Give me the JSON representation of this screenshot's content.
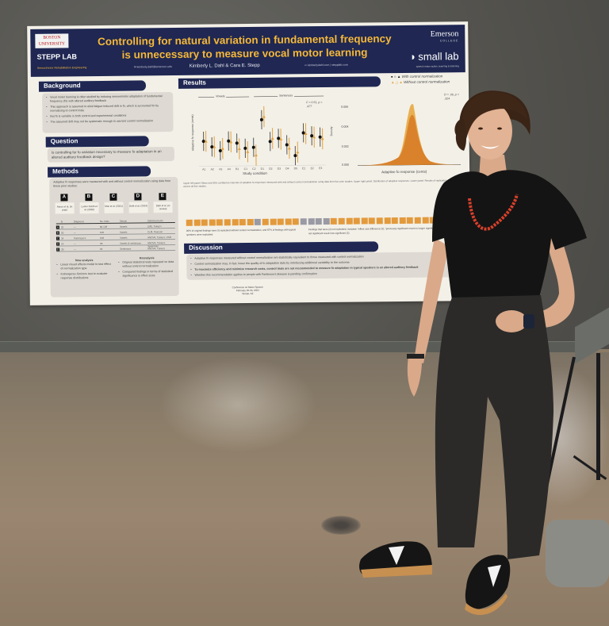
{
  "scene": {
    "description": "Researcher standing next to a conference poster mounted on a gray fabric board",
    "colors": {
      "board": "#55544f",
      "floor": "#8e7f6a",
      "poster_navy": "#1f2752",
      "poster_gold": "#f5b83a",
      "poster_bg": "#f3f0e8",
      "orange": "#e39a3c",
      "gray_square": "#9a9aa4"
    }
  },
  "poster": {
    "title_line1": "Controlling for natural variation in fundamental frequency",
    "title_line2": "is unnecessary to measure vocal motor learning",
    "authors": "Kimberly L. Dahl & Cara E. Stepp",
    "email": "kimberly.dahl@emerson.edu",
    "website": "kimberlydahl.com | stepplab.com",
    "logos": {
      "bu": "BOSTON UNIVERSITY",
      "stepp": "STEPP LAB",
      "stepp_sub": "Sensorimotor Rehabilitation Engineering",
      "emerson": "Emerson",
      "emerson_sub": "COLLEGE",
      "small_lab": "small lab",
      "small_lab_sub": "speech motor action, learning & listening"
    },
    "background": {
      "heading": "Background",
      "bullets": [
        "Vocal motor learning is often studied by inducing sensorimotor adaptation of fundamental frequency (fo) with altered auditory feedback",
        "This approach is assumed to elicit fatigue-induced drift in fo, which is accounted for by normalizing to control trials",
        "But fo is variable in both control and experimental conditions",
        "The assumed drift may not be systematic enough to warrant control normalization"
      ]
    },
    "question": {
      "heading": "Question",
      "text": "Is controlling for fo variation necessary to measure fo adaptation in an altered auditory feedback design?"
    },
    "methods": {
      "heading": "Methods",
      "intro": "Adaptive fo responses were measured with and without control normalization using data from these prior studies:",
      "studies": [
        {
          "letter": "A",
          "cite": "Aaron et al. (in prep)"
        },
        {
          "letter": "B",
          "cite": "Lester-Smith et al. (2020)"
        },
        {
          "letter": "C",
          "cite": "Moe et al. (2021)"
        },
        {
          "letter": "D",
          "cite": "Dahl et al. (2024)"
        },
        {
          "letter": "E",
          "cite": "Dahl et al. (in review)"
        }
      ],
      "table_headers": [
        "N",
        "Diagnosis",
        "No. trials",
        "Stimuli",
        "Statistical tests"
      ],
      "table_rows": [
        [
          "A",
          "32",
          "—",
          "60-128",
          "Vowels",
          "LME, Tukey's"
        ],
        [
          "B",
          "20",
          "—",
          "108",
          "Vowels",
          "CLM, Pearson"
        ],
        [
          "C",
          "34",
          "Parkinson's",
          "108",
          "Vowels",
          "ANOVA, Tukey's, HSD"
        ],
        [
          "D",
          "24",
          "—",
          "96",
          "Vowels & sentences",
          "ANOVA, Tukey's, Spearman"
        ],
        [
          "E",
          "30",
          "—",
          "84",
          "Sentences",
          "ANOVA, Tukey's"
        ]
      ],
      "new_analysis": {
        "heading": "New analysis",
        "bullets": [
          "Linear mixed effects model to test effect of normalization type",
          "Kolmogorov-Smirnov test to evaluate response distributions"
        ]
      },
      "reanalysis": {
        "heading": "Reanalysis",
        "bullets": [
          "Original statistical tests repeated on data without control normalization",
          "Compared findings in terms of statistical significance & effect sizes"
        ]
      }
    },
    "results": {
      "heading": "Results",
      "legend": [
        {
          "symbols": "● ○ ▲",
          "label": "With control normalization"
        },
        {
          "symbols": "▲ △ ▲",
          "label": "Without control normalization"
        }
      ],
      "left_plot": {
        "group_labels": [
          "Vowels",
          "Sentences"
        ],
        "stat": "F = 0.51, p = .477",
        "ylabel": "Adaptive fo response (cents)",
        "xlabel": "Study condition",
        "yticks": [
          "150",
          "100",
          "50",
          "0",
          "-50"
        ],
        "conditions": [
          "A1",
          "A2",
          "A3",
          "A4",
          "B1",
          "C1",
          "C2",
          "D1",
          "D2",
          "D3",
          "D4",
          "D5",
          "E1",
          "E2",
          "E3"
        ],
        "with_norm": [
          30,
          17,
          8,
          30,
          25,
          13,
          15,
          78,
          28,
          35,
          20,
          -5,
          47,
          40,
          37
        ],
        "without_norm": [
          30,
          17,
          13,
          28,
          12,
          5,
          -3,
          85,
          35,
          33,
          12,
          3,
          45,
          37,
          33
        ]
      },
      "right_plot": {
        "stat": "D = .06, p = .324",
        "ylabel": "Density",
        "xlabel": "Adaptive fo response (cents)",
        "yticks": [
          "0.006",
          "0.004",
          "0.002",
          "0.000"
        ],
        "xticks": [
          "-250",
          "0",
          "250",
          "500"
        ]
      },
      "caption": "Upper left panel: Mean and 95% confidence intervals of adaptive fo responses measured with and without control normalization using data from five prior studies. Upper right panel: Distribution of adaptive responses. Lower panel: Results of replication analyses across all five studies.",
      "replication": {
        "studies": [
          "Study A",
          "Study B",
          "Study C",
          "Study D",
          "Study E"
        ],
        "squares": [
          "o",
          "o",
          "o",
          "o",
          "o",
          "o",
          "o",
          "o",
          "o",
          "g",
          "o",
          "o",
          "o",
          "o",
          "o",
          "g",
          "g",
          "g",
          "g",
          "o",
          "o",
          "o",
          "o",
          "o",
          "o",
          "o",
          "o",
          "o",
          "o",
          "o",
          "o",
          "o",
          "o",
          "g",
          "g",
          "o"
        ],
        "note_left": "90% of original findings were (i) replicated without control normalization, and 87% of findings with typical speakers were replicated",
        "note_right": "Findings that were (ii) not replicated, included: *effect size difference (3), *previously significant result no longer significant (4), and *previously not significant result now significant (3)"
      }
    },
    "discussion": {
      "heading": "Discussion",
      "bullets": [
        "Adaptive fo responses measured without control normalization are statistically equivalent to those measured with control normalization",
        "Control normalization may, in fact, lower the quality of fo adaptation data by introducing additional variability to the outcome",
        "To maximize efficiency and minimize research costs, control trials are not recommended to measure fo adaptation in typical speakers in an altered auditory feedback",
        "Whether this recommendation applies to people with Parkinson's disease is pending confirmation"
      ]
    },
    "footer": {
      "conference": "Conference on Motor Speech",
      "dates": "February 26-29, 2024",
      "location": "Tempe, AZ"
    }
  }
}
